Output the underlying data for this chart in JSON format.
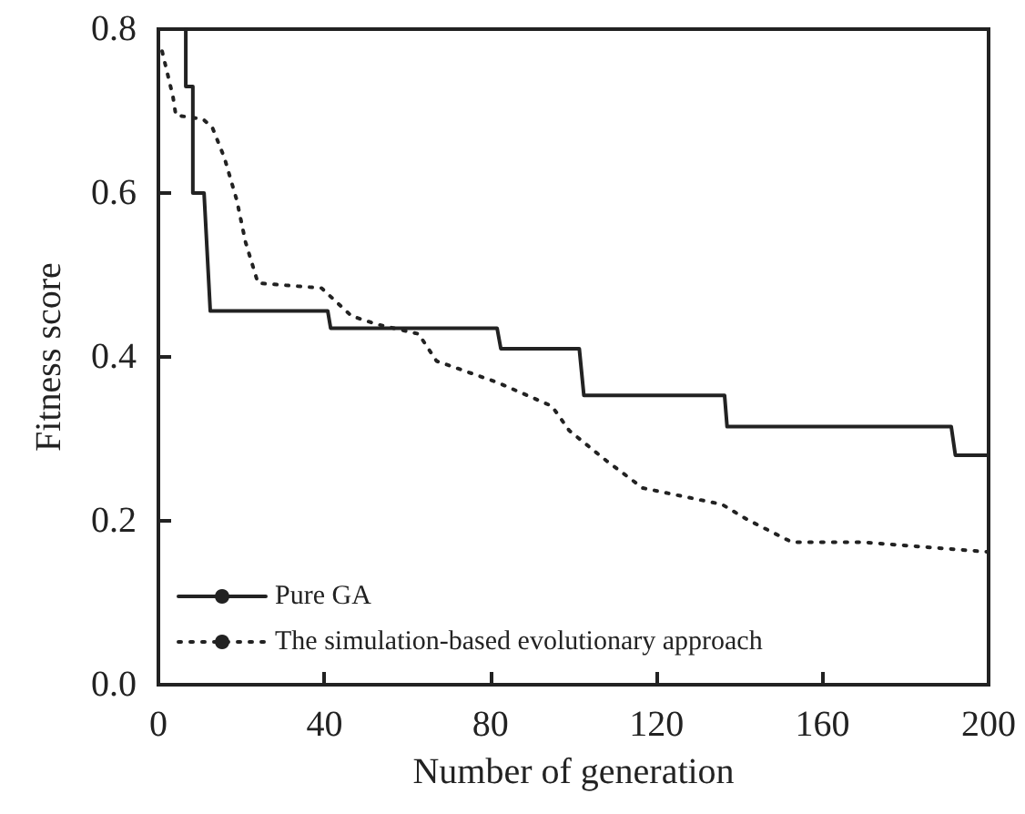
{
  "chart_data": {
    "type": "line",
    "xlabel": "Number of generation",
    "ylabel": "Fitness score",
    "xlim": [
      0,
      200
    ],
    "xticks": [
      0,
      40,
      80,
      120,
      160,
      200
    ],
    "ylim": [
      0,
      0.8
    ],
    "yticks": [
      {
        "value": 0,
        "label": "0.0"
      },
      0.2,
      0.4,
      0.6,
      0.8
    ],
    "grid": false,
    "legend": "bottom left",
    "marker": "none",
    "series": [
      {
        "name": "Pure GA",
        "color": "#222222",
        "line_style": "solid",
        "x": [
          6.6,
          6.6,
          8.3,
          8.3,
          11,
          12.5,
          40.8,
          41.5,
          81.6,
          82.5,
          101.4,
          102.5,
          136.4,
          137,
          191,
          192,
          200
        ],
        "values": [
          0.8,
          0.73,
          0.73,
          0.6,
          0.6,
          0.456,
          0.456,
          0.435,
          0.435,
          0.41,
          0.41,
          0.353,
          0.353,
          0.315,
          0.315,
          0.28,
          0.28
        ]
      },
      {
        "name": "The simulation-based evolutionary approach",
        "color": "#222222",
        "line_style": "dotted",
        "x": [
          0.9,
          3.5,
          4.2,
          10.8,
          13,
          15.9,
          18.9,
          21,
          24,
          39.3,
          46.5,
          52.5,
          62.7,
          67,
          81.6,
          94.8,
          99,
          108,
          116.7,
          135.8,
          141.7,
          152.6,
          169.6,
          200
        ],
        "values": [
          0.773,
          0.718,
          0.695,
          0.69,
          0.68,
          0.643,
          0.591,
          0.54,
          0.49,
          0.484,
          0.45,
          0.44,
          0.428,
          0.395,
          0.369,
          0.34,
          0.31,
          0.273,
          0.24,
          0.22,
          0.202,
          0.174,
          0.174,
          0.162
        ]
      }
    ]
  }
}
